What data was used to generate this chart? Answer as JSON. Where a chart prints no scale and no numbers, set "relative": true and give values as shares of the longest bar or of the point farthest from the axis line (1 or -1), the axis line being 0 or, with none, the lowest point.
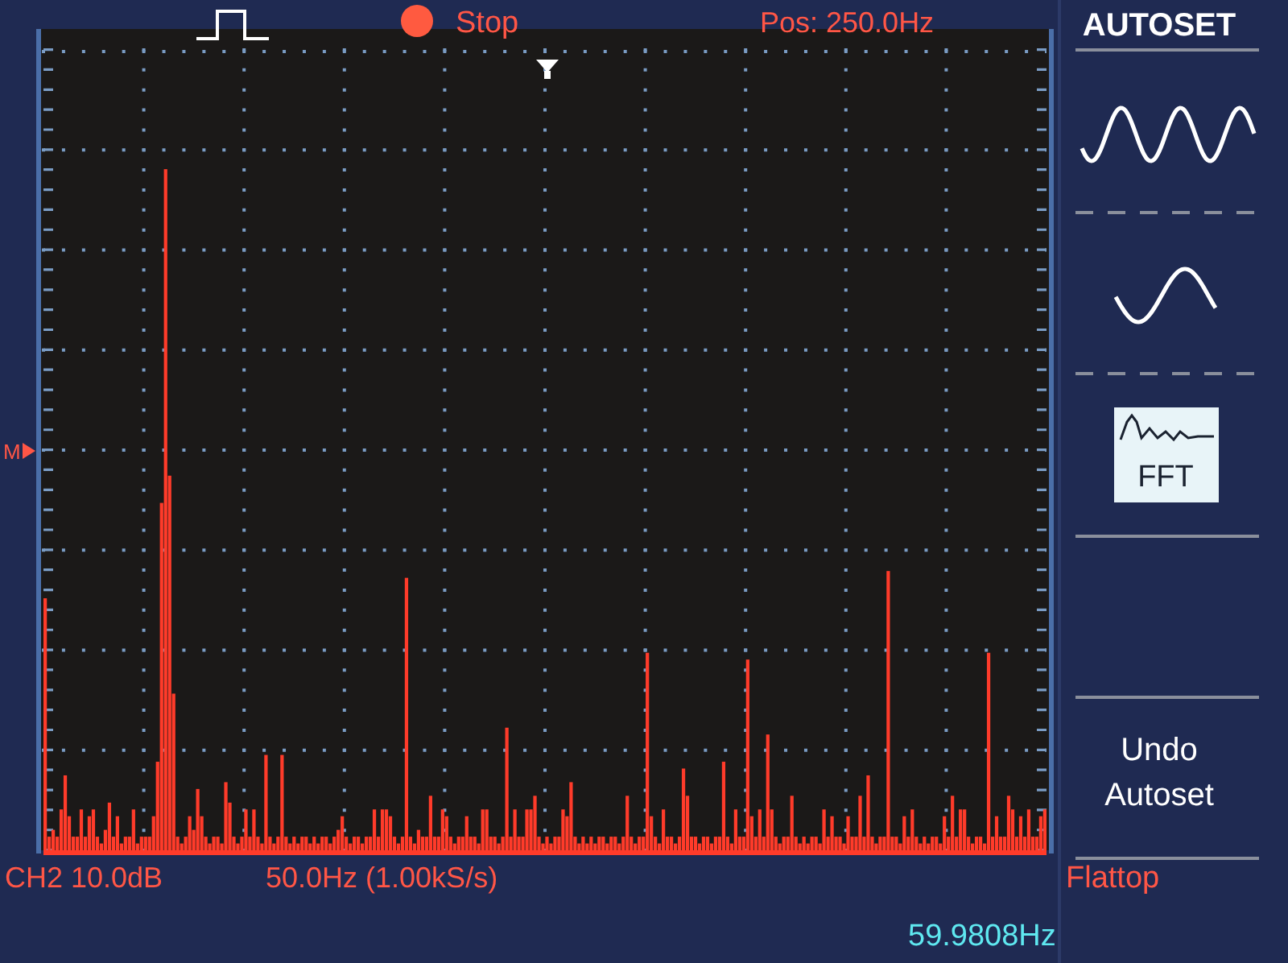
{
  "chart_data": {
    "type": "bar",
    "relative": true,
    "color": "#ff3b2a",
    "grid": true,
    "categories": [
      null,
      null,
      null,
      null,
      null,
      null,
      null,
      null,
      null,
      null,
      null,
      null,
      null,
      null,
      null,
      null,
      null,
      null,
      null,
      null,
      null,
      null,
      null,
      null,
      null,
      null,
      null,
      null,
      null,
      null,
      null,
      null,
      null,
      null,
      null,
      null,
      null,
      null,
      null,
      null,
      null,
      null,
      null,
      null,
      null,
      null,
      null,
      null,
      null,
      null,
      null,
      null,
      null,
      null,
      null,
      null,
      null,
      null,
      null,
      null,
      null,
      null,
      null,
      null,
      null,
      null,
      null,
      null,
      null,
      null,
      null,
      null,
      null,
      null,
      null,
      null,
      null,
      null,
      null,
      null,
      null,
      null,
      null,
      null,
      null,
      null,
      null,
      null,
      null,
      null,
      null,
      null,
      null,
      null,
      null,
      null,
      null,
      null,
      null,
      null,
      null,
      null,
      null,
      null,
      null,
      null,
      null,
      null,
      null,
      null,
      null,
      null,
      null,
      null,
      null,
      null,
      null,
      null,
      null,
      null,
      null,
      null,
      null,
      null,
      null,
      null,
      null,
      null,
      null,
      null,
      null,
      null,
      null,
      null,
      null,
      null,
      null,
      null,
      null,
      null,
      null,
      null,
      null,
      null,
      null,
      null,
      null,
      null,
      null,
      null,
      null,
      null,
      null,
      null,
      null,
      null,
      null,
      null,
      null,
      null,
      null,
      null,
      null,
      null,
      null,
      null,
      null,
      null,
      null,
      null,
      null,
      null,
      null,
      null,
      null,
      null,
      null,
      null,
      null,
      null,
      null,
      null,
      null,
      null,
      null,
      null,
      null,
      null,
      null,
      null,
      null,
      null,
      null,
      null,
      null,
      null,
      null,
      null,
      null,
      null,
      null,
      null,
      null,
      null,
      null,
      null,
      null,
      null,
      null,
      null,
      null,
      null,
      null,
      null,
      null,
      null,
      null,
      null,
      null,
      null,
      null,
      null,
      null,
      null,
      null,
      null,
      null,
      null,
      null,
      null,
      null,
      null,
      null,
      null,
      null,
      null,
      null,
      null,
      null,
      null,
      null,
      null,
      null,
      null,
      null,
      null,
      null,
      null,
      null,
      null
    ],
    "values": [
      0.37,
      0.02,
      0.03,
      0.02,
      0.06,
      0.11,
      0.05,
      0.02,
      0.02,
      0.06,
      0.02,
      0.05,
      0.06,
      0.02,
      0.01,
      0.03,
      0.07,
      0.02,
      0.05,
      0.01,
      0.02,
      0.02,
      0.06,
      0.01,
      0.02,
      0.02,
      0.02,
      0.05,
      0.13,
      0.51,
      1,
      0.55,
      0.23,
      0.02,
      0.01,
      0.02,
      0.05,
      0.03,
      0.09,
      0.05,
      0.02,
      0.01,
      0.02,
      0.02,
      0.01,
      0.1,
      0.07,
      0.02,
      0.01,
      0.02,
      0.06,
      0.02,
      0.06,
      0.02,
      0.01,
      0.14,
      0.02,
      0.01,
      0.02,
      0.14,
      0.02,
      0.01,
      0.02,
      0.01,
      0.02,
      0.02,
      0.01,
      0.02,
      0.01,
      0.02,
      0.02,
      0.01,
      0.02,
      0.03,
      0.05,
      0.02,
      0.01,
      0.02,
      0.02,
      0.01,
      0.02,
      0.02,
      0.06,
      0.02,
      0.06,
      0.06,
      0.05,
      0.02,
      0.01,
      0.02,
      0.4,
      0.02,
      0.01,
      0.03,
      0.02,
      0.02,
      0.08,
      0.02,
      0.02,
      0.06,
      0.05,
      0.02,
      0.01,
      0.02,
      0.02,
      0.05,
      0.02,
      0.02,
      0.01,
      0.06,
      0.06,
      0.02,
      0.02,
      0.01,
      0.02,
      0.18,
      0.02,
      0.06,
      0.02,
      0.02,
      0.06,
      0.06,
      0.08,
      0.02,
      0.01,
      0.02,
      0.01,
      0.02,
      0.02,
      0.06,
      0.05,
      0.1,
      0.02,
      0.01,
      0.02,
      0.01,
      0.02,
      0.01,
      0.02,
      0.02,
      0.01,
      0.02,
      0.02,
      0.01,
      0.02,
      0.08,
      0.02,
      0.01,
      0.02,
      0.02,
      0.29,
      0.05,
      0.02,
      0.01,
      0.06,
      0.02,
      0.02,
      0.01,
      0.02,
      0.12,
      0.08,
      0.02,
      0.02,
      0.01,
      0.02,
      0.02,
      0.01,
      0.02,
      0.02,
      0.13,
      0.02,
      0.01,
      0.06,
      0.02,
      0.02,
      0.28,
      0.05,
      0.02,
      0.06,
      0.02,
      0.17,
      0.06,
      0.02,
      0.01,
      0.02,
      0.02,
      0.08,
      0.02,
      0.01,
      0.02,
      0.01,
      0.02,
      0.02,
      0.01,
      0.06,
      0.02,
      0.05,
      0.02,
      0.02,
      0.01,
      0.05,
      0.02,
      0.02,
      0.08,
      0.02,
      0.11,
      0.02,
      0.01,
      0.02,
      0.02,
      0.41,
      0.02,
      0.02,
      0.01,
      0.05,
      0.02,
      0.06,
      0.02,
      0.01,
      0.02,
      0.01,
      0.02,
      0.02,
      0.01,
      0.05,
      0.02,
      0.08,
      0.02,
      0.06,
      0.06,
      0.02,
      0.01,
      0.02,
      0.02,
      0.01,
      0.29,
      0.02,
      0.05,
      0.02,
      0.02,
      0.08,
      0.06,
      0.02,
      0.05,
      0.02,
      0.06,
      0.02,
      0.02,
      0.05,
      0.06
    ],
    "annotations": [
      "Stop",
      "Pos: 250.0Hz",
      "AUTOSET",
      "FFT",
      "Undo Autoset",
      "M",
      "CH2 10.0dB",
      "50.0Hz (1.00kS/s)",
      "Flattop",
      "59.9808Hz"
    ]
  }
}
